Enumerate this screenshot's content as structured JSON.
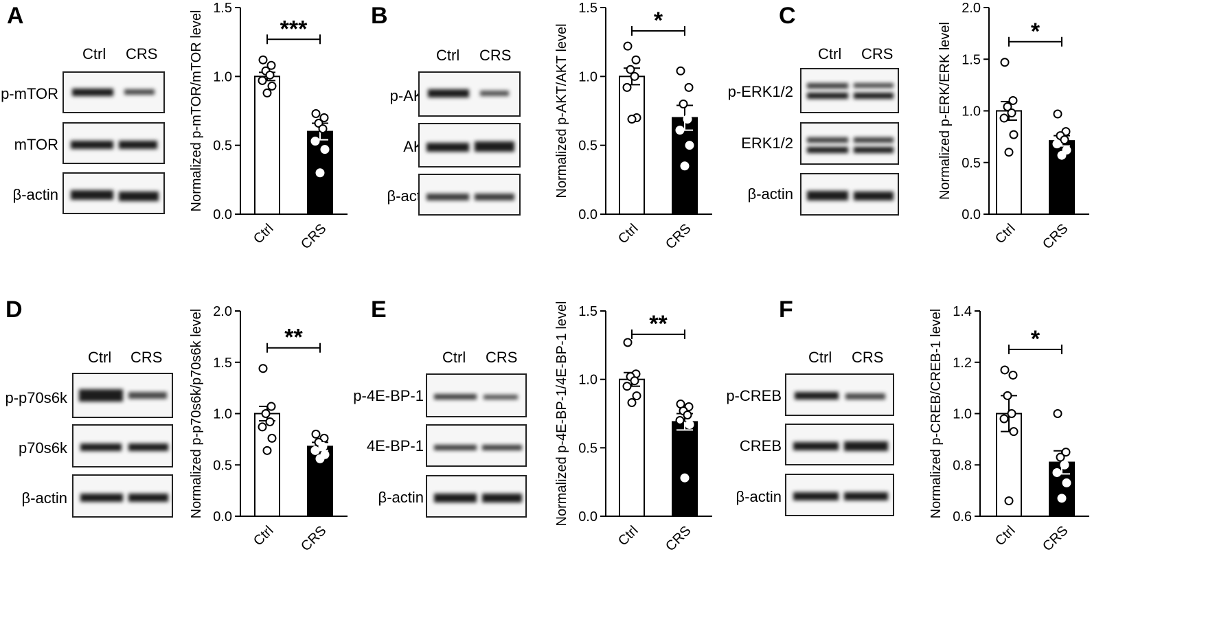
{
  "lane_labels": {
    "ctrl": "Ctrl",
    "crs": "CRS"
  },
  "actin_label": "β-actin",
  "panels": [
    {
      "letter": "A",
      "phos_label": "p-mTOR",
      "total_label": "mTOR"
    },
    {
      "letter": "B",
      "phos_label": "p-AKT",
      "total_label": "AKT"
    },
    {
      "letter": "C",
      "phos_label": "p-ERK1/2",
      "total_label": "ERK1/2"
    },
    {
      "letter": "D",
      "phos_label": "p-p70s6k",
      "total_label": "p70s6k"
    },
    {
      "letter": "E",
      "phos_label": "p-4E-BP-1",
      "total_label": "4E-BP-1"
    },
    {
      "letter": "F",
      "phos_label": "p-CREB",
      "total_label": "CREB"
    }
  ],
  "chart_data": [
    {
      "type": "bar",
      "panel": "A",
      "categories": [
        "Ctrl",
        "CRS"
      ],
      "values": [
        1.0,
        0.6
      ],
      "sem": [
        0.03,
        0.06
      ],
      "points": [
        [
          1.12,
          1.08,
          1.04,
          1.01,
          0.97,
          0.93,
          0.88
        ],
        [
          0.73,
          0.7,
          0.66,
          0.62,
          0.53,
          0.47,
          0.3
        ]
      ],
      "ylabel": "Normalized p-mTOR/mTOR level",
      "ylim": [
        0,
        1.5
      ],
      "yticks": [
        "0.0",
        "0.5",
        "1.0",
        "1.5"
      ],
      "significance": "***"
    },
    {
      "type": "bar",
      "panel": "B",
      "categories": [
        "Ctrl",
        "CRS"
      ],
      "values": [
        1.0,
        0.7
      ],
      "sem": [
        0.06,
        0.09
      ],
      "points": [
        [
          1.22,
          1.12,
          1.05,
          1.0,
          0.92,
          0.7,
          0.69
        ],
        [
          1.04,
          0.92,
          0.8,
          0.69,
          0.61,
          0.5,
          0.35
        ]
      ],
      "ylabel": "Normalized p-AKT/AKT level",
      "ylim": [
        0,
        1.5
      ],
      "yticks": [
        "0.0",
        "0.5",
        "1.0",
        "1.5"
      ],
      "significance": "*"
    },
    {
      "type": "bar",
      "panel": "C",
      "categories": [
        "Ctrl",
        "CRS"
      ],
      "values": [
        1.0,
        0.71
      ],
      "sem": [
        0.09,
        0.05
      ],
      "points": [
        [
          1.47,
          1.1,
          1.04,
          0.98,
          0.93,
          0.77,
          0.6
        ],
        [
          0.97,
          0.8,
          0.76,
          0.72,
          0.68,
          0.62,
          0.57
        ]
      ],
      "ylabel": "Normalized p-ERK/ERK level",
      "ylim": [
        0,
        2.0
      ],
      "yticks": [
        "0.0",
        "0.5",
        "1.0",
        "1.5",
        "2.0"
      ],
      "significance": "*"
    },
    {
      "type": "bar",
      "panel": "D",
      "categories": [
        "Ctrl",
        "CRS"
      ],
      "values": [
        1.0,
        0.68
      ],
      "sem": [
        0.07,
        0.04
      ],
      "points": [
        [
          1.44,
          1.07,
          1.0,
          0.92,
          0.87,
          0.76,
          0.64
        ],
        [
          0.8,
          0.76,
          0.72,
          0.68,
          0.64,
          0.6,
          0.56
        ]
      ],
      "ylabel": "Normalized p-p70s6k/p70s6k level",
      "ylim": [
        0,
        2.0
      ],
      "yticks": [
        "0.0",
        "0.5",
        "1.0",
        "1.5",
        "2.0"
      ],
      "significance": "**"
    },
    {
      "type": "bar",
      "panel": "E",
      "categories": [
        "Ctrl",
        "CRS"
      ],
      "values": [
        1.0,
        0.69
      ],
      "sem": [
        0.05,
        0.06
      ],
      "points": [
        [
          1.27,
          1.04,
          1.02,
          0.99,
          0.95,
          0.88,
          0.83
        ],
        [
          0.82,
          0.8,
          0.77,
          0.74,
          0.7,
          0.67,
          0.28
        ]
      ],
      "ylabel": "Normalized p-4E-BP-1/4E-BP-1 level",
      "ylim": [
        0,
        1.5
      ],
      "yticks": [
        "0.0",
        "0.5",
        "1.0",
        "1.5"
      ],
      "significance": "**"
    },
    {
      "type": "bar",
      "panel": "F",
      "categories": [
        "Ctrl",
        "CRS"
      ],
      "values": [
        1.0,
        0.81
      ],
      "sem": [
        0.07,
        0.045
      ],
      "points": [
        [
          1.17,
          1.15,
          1.07,
          1.0,
          0.98,
          0.93,
          0.66
        ],
        [
          1.0,
          0.85,
          0.83,
          0.8,
          0.77,
          0.73,
          0.67
        ]
      ],
      "ylabel": "Normalized p-CREB/CREB-1 level",
      "ylim": [
        0.6,
        1.4
      ],
      "yticks": [
        "0.6",
        "0.8",
        "1.0",
        "1.2",
        "1.4"
      ],
      "significance": "*"
    }
  ]
}
